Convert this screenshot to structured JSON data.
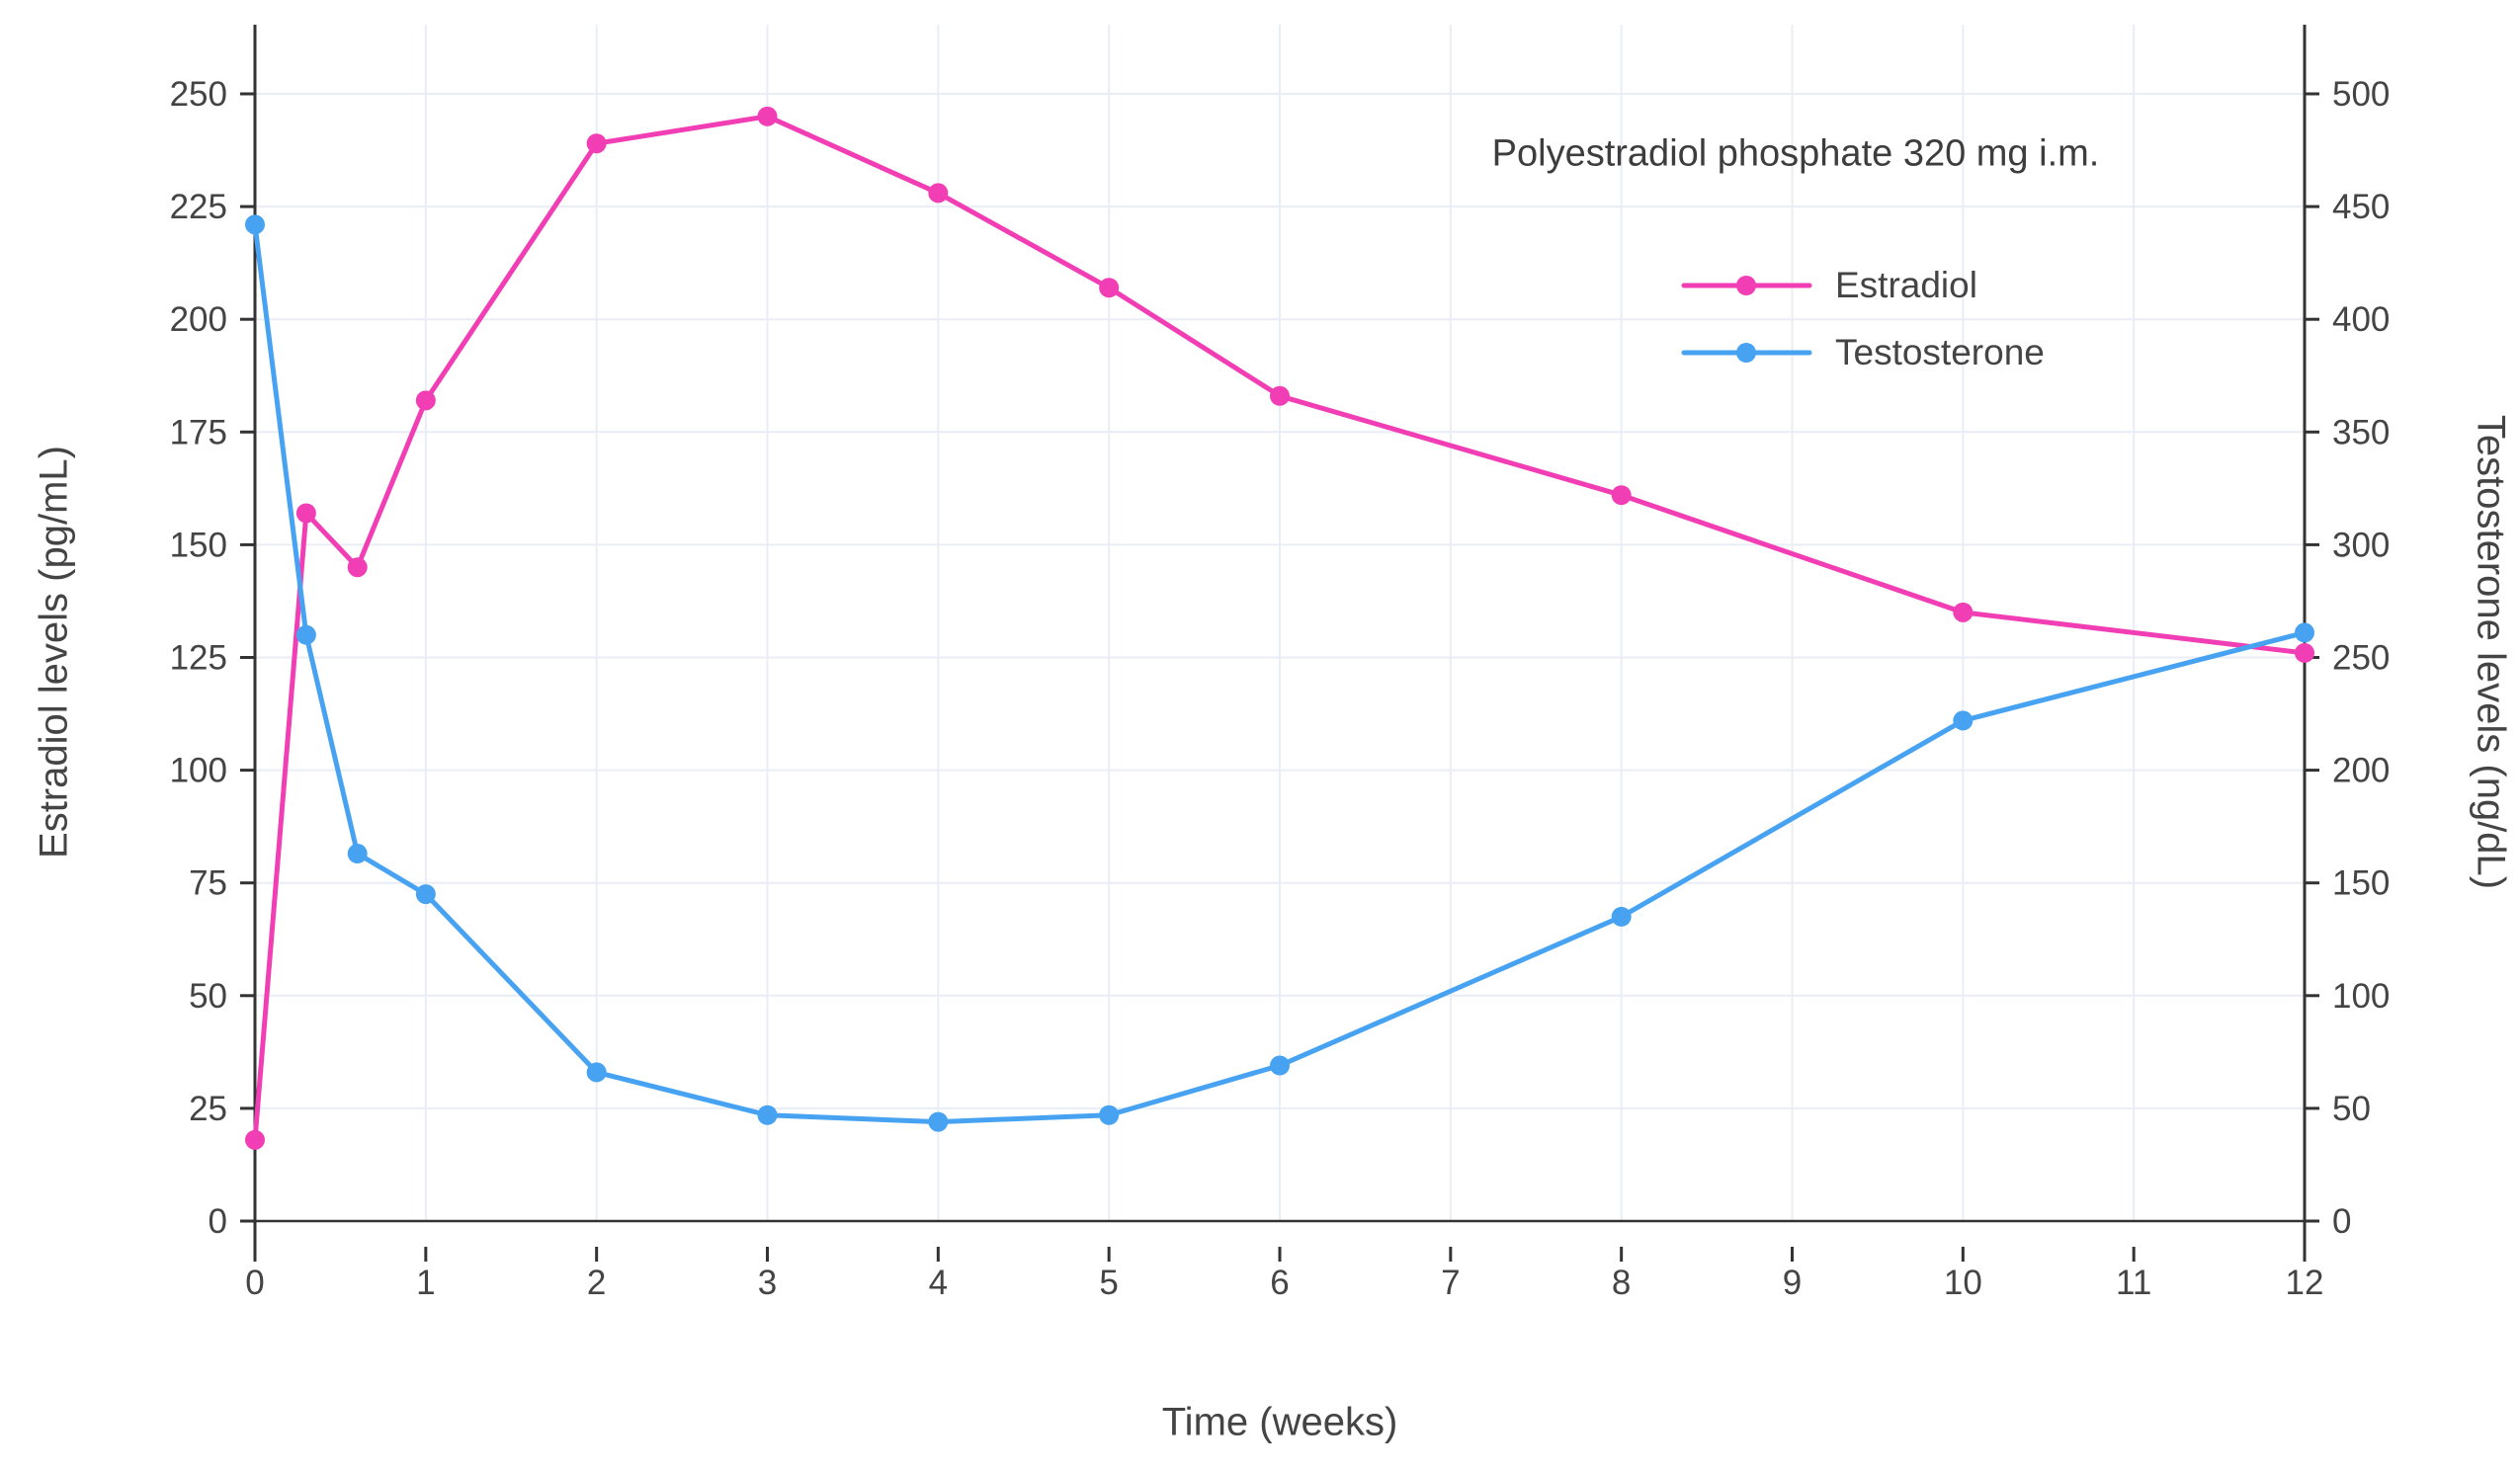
{
  "chart_data": {
    "type": "line",
    "title": "",
    "annotation": "Polyestradiol phosphate 320 mg i.m.",
    "xlabel": "Time (weeks)",
    "ylabel_left": "Estradiol levels (pg/mL)",
    "ylabel_right": "Testosterone levels (ng/dL)",
    "xlim": [
      0,
      12
    ],
    "ylim_left": [
      0,
      250
    ],
    "ylim_right": [
      0,
      500
    ],
    "x_ticks": [
      0,
      1,
      2,
      3,
      4,
      5,
      6,
      7,
      8,
      9,
      10,
      11,
      12
    ],
    "y_ticks_left": [
      0,
      25,
      50,
      75,
      100,
      125,
      150,
      175,
      200,
      225,
      250
    ],
    "y_ticks_right": [
      0,
      50,
      100,
      150,
      200,
      250,
      300,
      350,
      400,
      450,
      500
    ],
    "grid": true,
    "legend_position": "upper-right",
    "colors": {
      "grid": "#E9EDF5",
      "axis": "#333333",
      "text": "#444444"
    },
    "series": [
      {
        "name": "Estradiol",
        "color": "#F23EB4",
        "axis": "left",
        "x": [
          0,
          0.3,
          0.6,
          1,
          2,
          3,
          4,
          5,
          6,
          8,
          10,
          12
        ],
        "y": [
          18,
          157,
          145,
          182,
          239,
          245,
          228,
          207,
          183,
          161,
          135,
          126
        ]
      },
      {
        "name": "Testosterone",
        "color": "#47A3F2",
        "axis": "right",
        "x": [
          0,
          0.3,
          0.6,
          1,
          2,
          3,
          4,
          5,
          6,
          8,
          10,
          12
        ],
        "y": [
          442,
          260,
          163,
          145,
          66,
          47,
          44,
          47,
          69,
          135,
          222,
          261
        ]
      }
    ]
  }
}
